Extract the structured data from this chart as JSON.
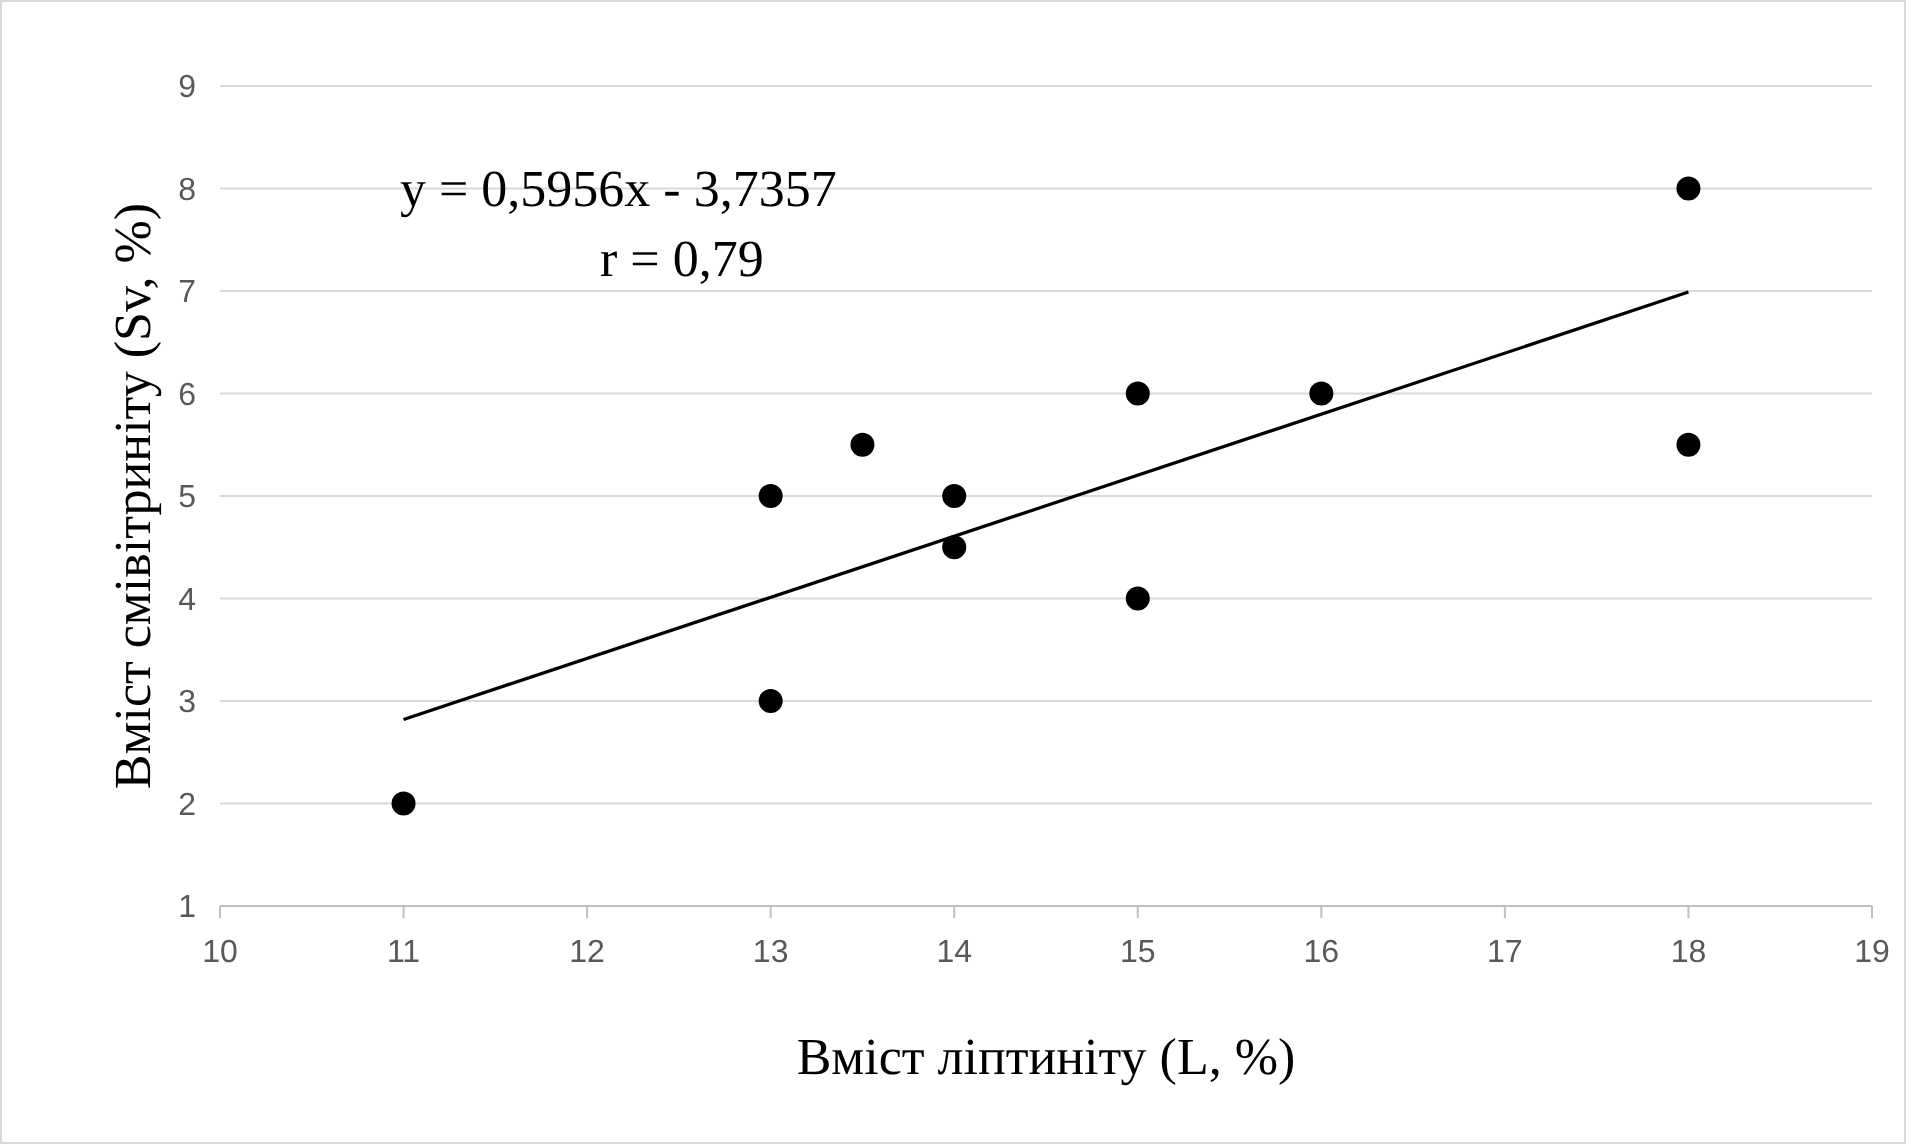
{
  "chart_data": {
    "type": "scatter",
    "xlabel": "Вміст ліптиніту (L, %)",
    "ylabel": "Вміст смівітриніту (Sv, %)",
    "xlim": [
      10,
      19
    ],
    "xticks": [
      10,
      11,
      12,
      13,
      14,
      15,
      16,
      17,
      18,
      19
    ],
    "ylim": [
      1,
      9
    ],
    "yticks": [
      1,
      2,
      3,
      4,
      5,
      6,
      7,
      8,
      9
    ],
    "grid": "y",
    "marker": "circle",
    "annotations": [
      "y = 0,5956x - 3,7357",
      "r = 0,79"
    ],
    "series": [
      {
        "color": "#000000",
        "x": [
          11,
          13,
          13,
          13.5,
          14,
          14,
          15,
          15,
          16,
          18,
          18
        ],
        "values": [
          2,
          5,
          3,
          5.5,
          5,
          4.5,
          6,
          4,
          6,
          8,
          5.5
        ]
      },
      {
        "type": "line",
        "color": "#000000",
        "marker": "none",
        "x": [
          11,
          18
        ],
        "values": [
          2.82,
          6.99
        ]
      }
    ]
  }
}
